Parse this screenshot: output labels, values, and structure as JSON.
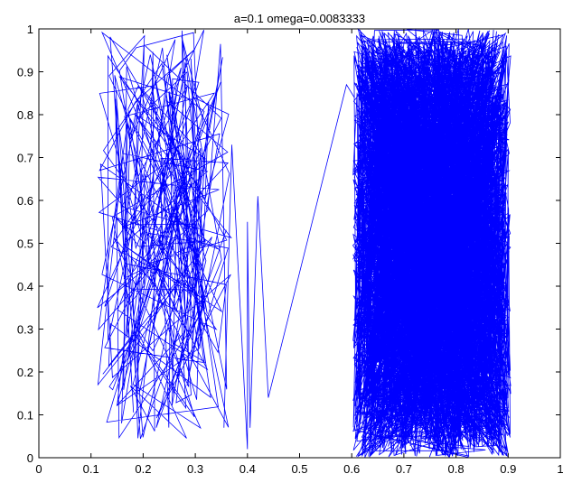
{
  "chart_data": {
    "type": "line",
    "title": "a=0.1 omega=0.0083333",
    "xlabel": "",
    "ylabel": "",
    "xlim": [
      0,
      1
    ],
    "ylim": [
      0,
      1
    ],
    "xticks": [
      "0",
      "0.1",
      "0.2",
      "0.3",
      "0.4",
      "0.5",
      "0.6",
      "0.7",
      "0.8",
      "0.9",
      "1"
    ],
    "yticks": [
      "0",
      "0.1",
      "0.2",
      "0.3",
      "0.4",
      "0.5",
      "0.6",
      "0.7",
      "0.8",
      "0.9",
      "1"
    ],
    "xtick_values": [
      0,
      0.1,
      0.2,
      0.3,
      0.4,
      0.5,
      0.6,
      0.7,
      0.8,
      0.9,
      1
    ],
    "ytick_values": [
      0,
      0.1,
      0.2,
      0.3,
      0.4,
      0.5,
      0.6,
      0.7,
      0.8,
      0.9,
      1
    ],
    "grid": false,
    "line_color": "#0000ff",
    "series": [
      {
        "scatter_segment": {
          "x_range": [
            0.11,
            0.37
          ],
          "y_range": [
            0.04,
            1.0
          ]
        },
        "transition_points": [
          {
            "x": 0.355,
            "y": 0.07
          },
          {
            "x": 0.37,
            "y": 0.73
          },
          {
            "x": 0.4,
            "y": 0.02
          },
          {
            "x": 0.4,
            "y": 0.55
          },
          {
            "x": 0.405,
            "y": 0.07
          },
          {
            "x": 0.42,
            "y": 0.61
          },
          {
            "x": 0.44,
            "y": 0.14
          },
          {
            "x": 0.59,
            "y": 0.87
          },
          {
            "x": 0.605,
            "y": 0.84
          }
        ],
        "dense_band": {
          "x_range": [
            0.602,
            0.905
          ],
          "y_range": [
            0.0,
            1.0
          ]
        }
      }
    ]
  }
}
